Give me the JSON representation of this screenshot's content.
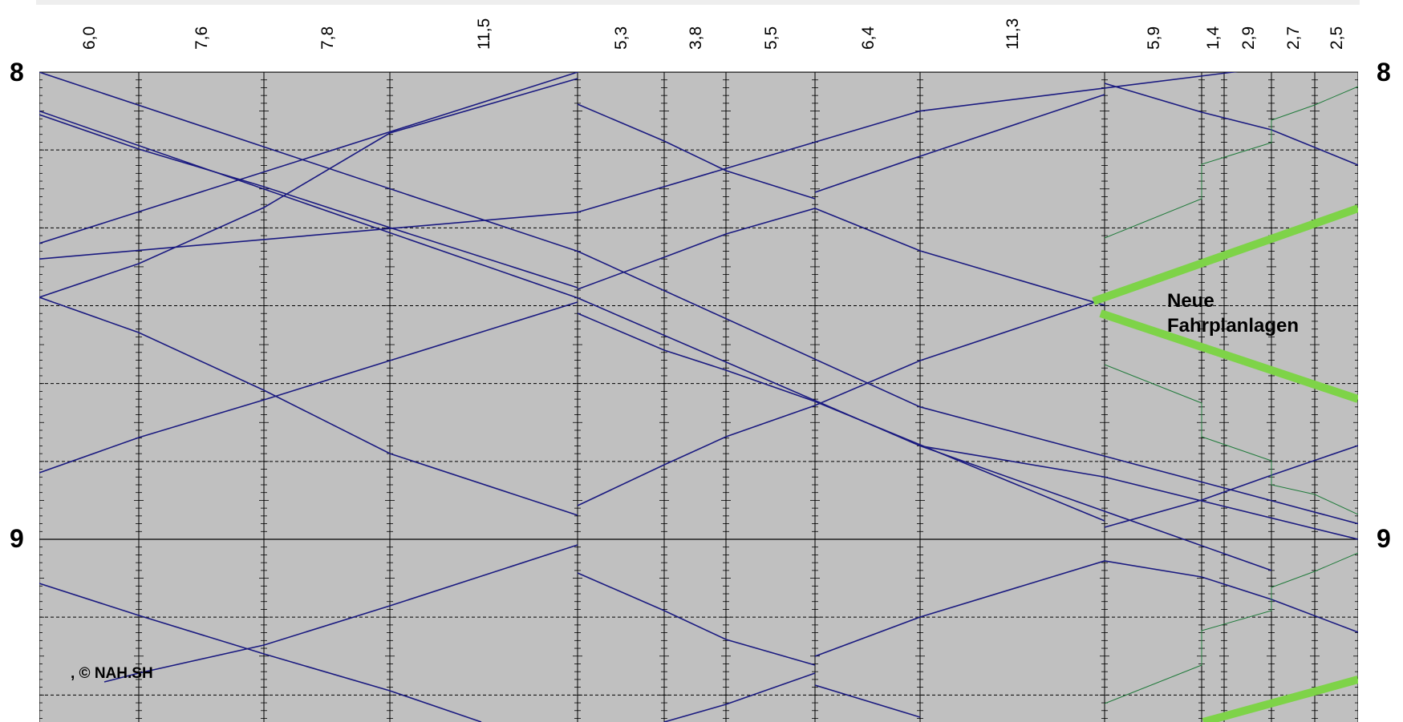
{
  "chart_data": {
    "type": "line",
    "title": "",
    "distances_km": [
      "6,0",
      "7,6",
      "7,8",
      "11,5",
      "5,3",
      "3,8",
      "5,5",
      "6,4",
      "11,3",
      "5,9",
      "1,4",
      "2,9",
      "2,7",
      "2,5"
    ],
    "y_axis": {
      "hour_labels": [
        "8",
        "9"
      ],
      "minor_step_min": 1,
      "grid_step_min": 10
    },
    "annotation_lines": [
      "Neue",
      "Fahrplanlagen"
    ],
    "credit": ", © NAH.SH",
    "colors": {
      "plot_bg": "#c0c0c0",
      "existing_trains": "#1a1a80",
      "new_trains_thin": "#1f7a3a",
      "new_trains_bold": "#7ed348",
      "grid": "#000000"
    },
    "stations_count": 15,
    "series": [
      {
        "style": "existing",
        "trains": [
          [
            [
              0,
              5
            ],
            [
              4,
              29
            ]
          ],
          [
            [
              4,
              29
            ],
            [
              8,
              48
            ]
          ],
          [
            [
              8,
              48
            ],
            [
              12,
              64
            ]
          ],
          [
            [
              8,
              48
            ],
            [
              9,
              52
            ],
            [
              14,
              60
            ]
          ],
          [
            [
              0,
              0
            ],
            [
              4,
              23
            ]
          ],
          [
            [
              4,
              23
            ],
            [
              8,
              43
            ]
          ],
          [
            [
              8,
              43
            ],
            [
              14,
              58
            ]
          ],
          [
            [
              0,
              24
            ],
            [
              4,
              18
            ]
          ],
          [
            [
              4,
              18
            ],
            [
              8,
              5
            ]
          ],
          [
            [
              8,
              5
            ],
            [
              14,
              -2
            ]
          ],
          [
            [
              0,
              22
            ],
            [
              4,
              0
            ]
          ],
          [
            [
              4,
              0
            ],
            [
              8,
              -15
            ]
          ],
          [
            [
              8,
              -15
            ],
            [
              9,
              -17
            ],
            [
              14,
              -31
            ]
          ],
          [
            [
              0,
              -38
            ],
            [
              4,
              -54
            ]
          ],
          [
            [
              4,
              -54
            ],
            [
              8,
              -73
            ]
          ]
        ]
      }
    ]
  }
}
